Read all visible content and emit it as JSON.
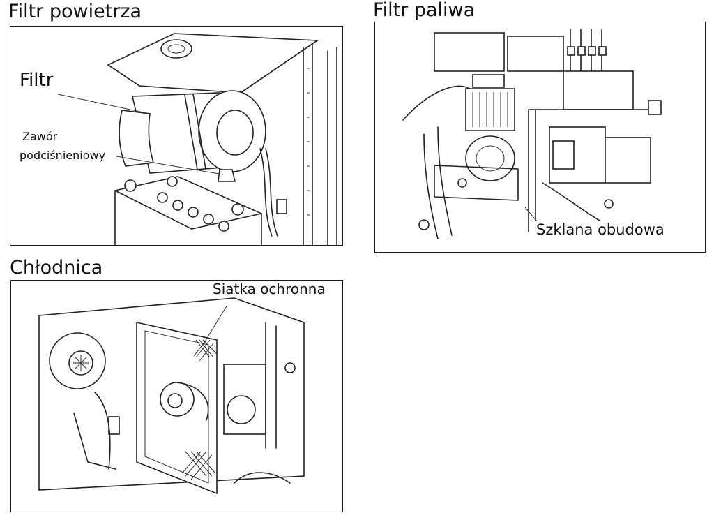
{
  "sections": {
    "air_filter": {
      "title": "Filtr powietrza",
      "label_filter": "Filtr",
      "label_valve_line1": "Zawór",
      "label_valve_line2": "podciśnieniowy"
    },
    "fuel_filter": {
      "title": "Filtr paliwa",
      "label_housing": "Szklana obudowa"
    },
    "radiator": {
      "title": "Chłodnica",
      "label_screen": "Siatka ochronna"
    }
  },
  "icons": {
    "air_filter": "air-filter-illustration",
    "fuel_filter": "fuel-filter-illustration",
    "radiator": "radiator-illustration"
  }
}
